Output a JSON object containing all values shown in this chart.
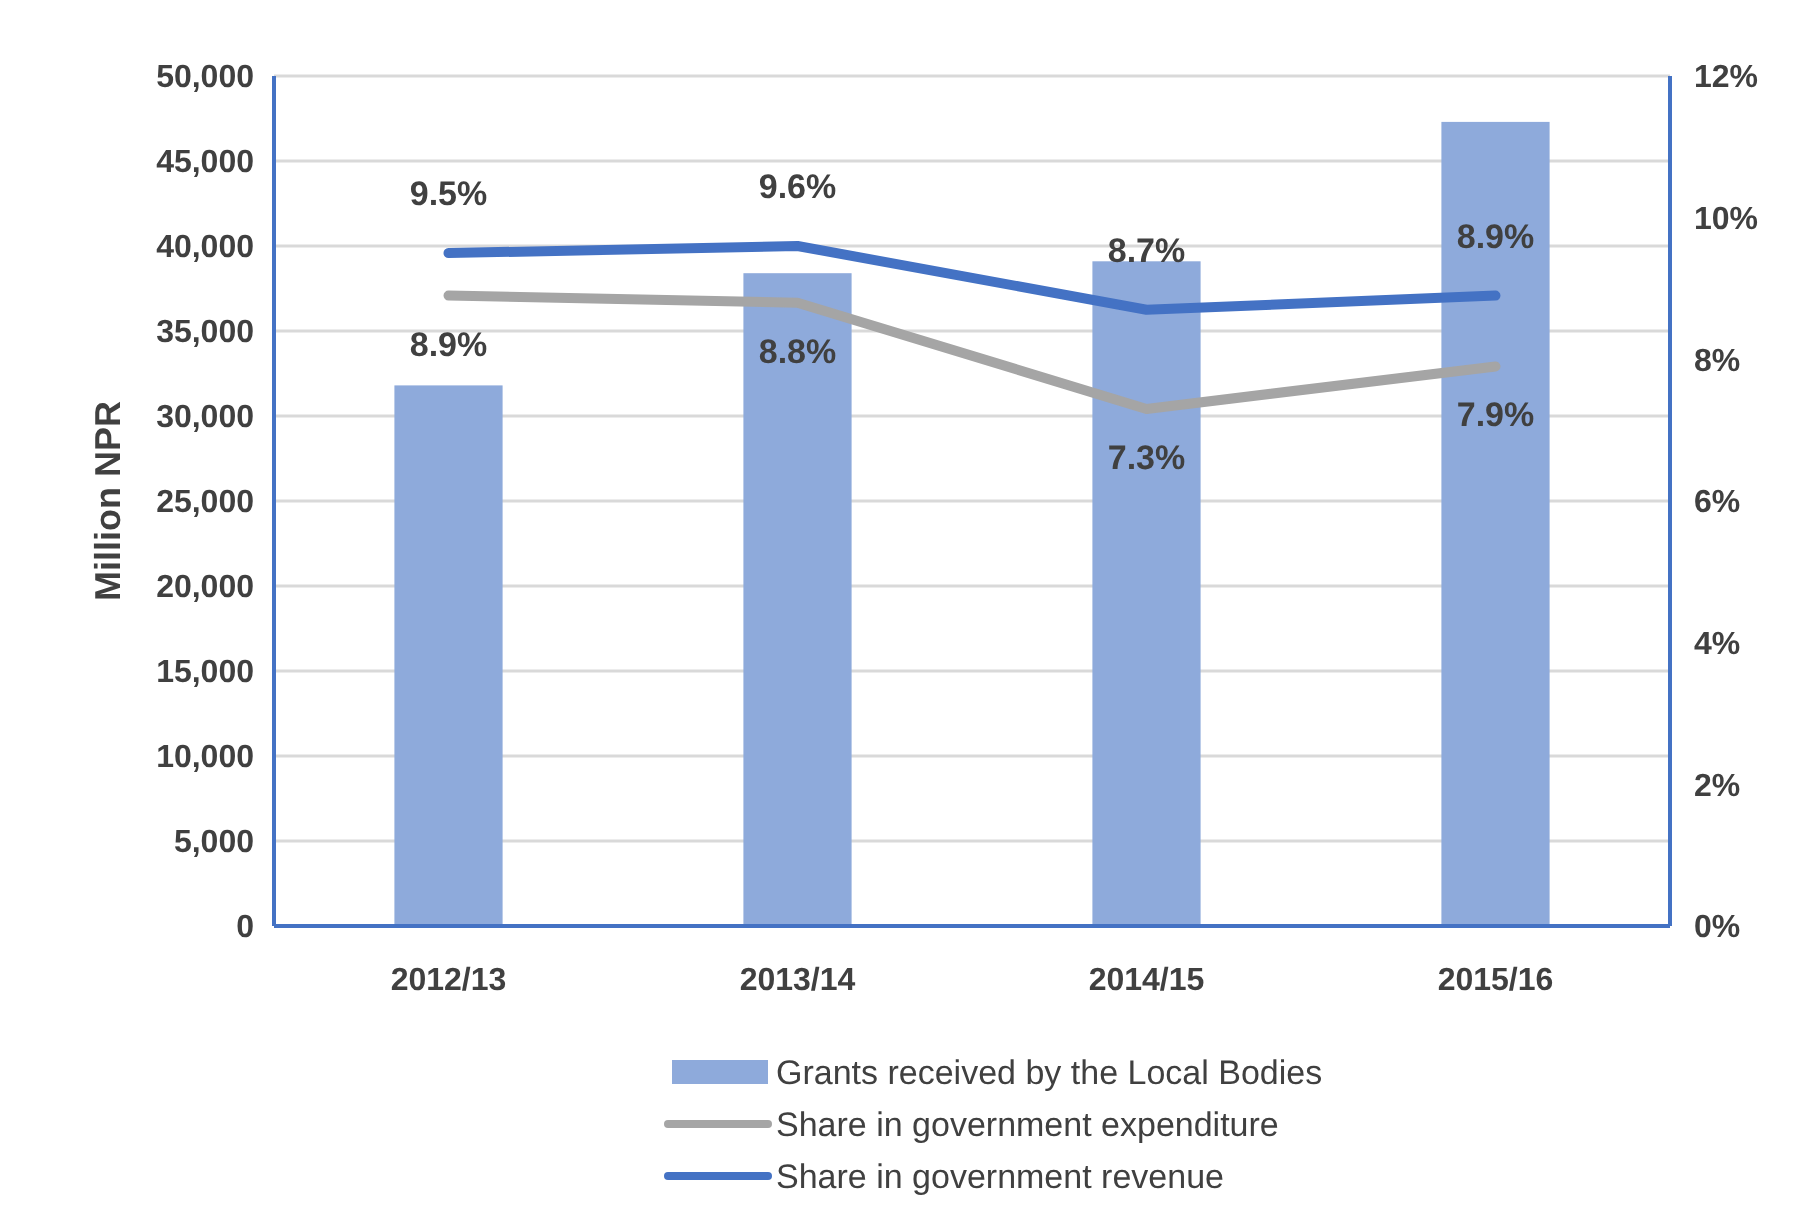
{
  "chart_data": {
    "type": "bar",
    "ylabel": "Million NPR",
    "categories": [
      "2012/13",
      "2013/14",
      "2014/15",
      "2015/16"
    ],
    "series": [
      {
        "name": "Grants received by the Local Bodies",
        "color": "#8eaadb",
        "values": [
          31800,
          38400,
          39100,
          47300
        ]
      },
      {
        "name": "Share in government expenditure",
        "type": "line",
        "axis": "y2",
        "color": "#a5a5a5",
        "values": [
          8.9,
          8.8,
          7.3,
          7.9
        ],
        "value_labels": [
          "8.9%",
          "8.8%",
          "7.3%",
          "7.9%"
        ]
      },
      {
        "name": "Share in government revenue",
        "type": "line",
        "axis": "y2",
        "color": "#4472c4",
        "values": [
          9.5,
          9.6,
          8.7,
          8.9
        ],
        "value_labels": [
          "9.5%",
          "9.6%",
          "8.7%",
          "8.9%"
        ]
      }
    ],
    "ylim": [
      0,
      50000
    ],
    "yticks": [
      {
        "value": 0,
        "label": "0"
      },
      {
        "value": 5000,
        "label": "5,000"
      },
      {
        "value": 10000,
        "label": "10,000"
      },
      {
        "value": 15000,
        "label": "15,000"
      },
      {
        "value": 20000,
        "label": "20,000"
      },
      {
        "value": 25000,
        "label": "25,000"
      },
      {
        "value": 30000,
        "label": "30,000"
      },
      {
        "value": 35000,
        "label": "35,000"
      },
      {
        "value": 40000,
        "label": "40,000"
      },
      {
        "value": 45000,
        "label": "45,000"
      },
      {
        "value": 50000,
        "label": "50,000"
      }
    ],
    "y2lim": [
      0,
      12
    ],
    "y2ticks": [
      {
        "value": 0,
        "label": "0%"
      },
      {
        "value": 2,
        "label": "2%"
      },
      {
        "value": 4,
        "label": "4%"
      },
      {
        "value": 6,
        "label": "6%"
      },
      {
        "value": 8,
        "label": "8%"
      },
      {
        "value": 10,
        "label": "10%"
      },
      {
        "value": 12,
        "label": "12%"
      }
    ],
    "grid": "y",
    "legend": "bottom"
  }
}
